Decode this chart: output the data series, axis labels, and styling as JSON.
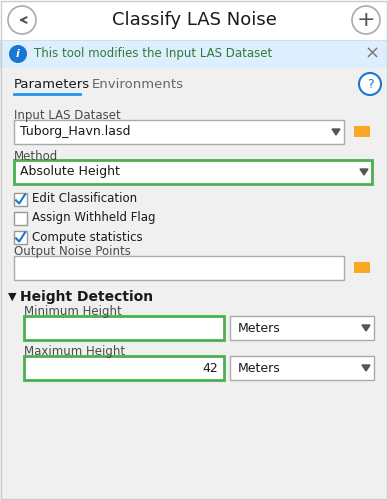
{
  "title": "Classify LAS Noise",
  "info_text": "This tool modifies the Input LAS Dataset",
  "tab1": "Parameters",
  "tab2": "Environments",
  "label_input_las": "Input LAS Dataset",
  "input_las_value": "Tuborg_Havn.lasd",
  "label_method": "Method",
  "method_value": "Absolute Height",
  "cb1_label": "Edit Classification",
  "cb1_checked": true,
  "cb2_label": "Assign Withheld Flag",
  "cb2_checked": false,
  "cb3_label": "Compute statistics",
  "cb3_checked": true,
  "label_output_noise": "Output Noise Points",
  "output_noise_value": "",
  "section_height_detection": "Height Detection",
  "label_min_height": "Minimum Height",
  "min_height_value": "",
  "label_max_height": "Maximum Height",
  "max_height_value": "42",
  "meters_label": "Meters",
  "bg_color": "#f0f0f0",
  "header_bg": "#ffffff",
  "info_bg": "#ddeeff",
  "info_text_color": "#2e7d32",
  "title_color": "#1a1a1a",
  "label_color": "#4a4a4a",
  "section_color": "#1a1a1a",
  "green_border": "#4caf50",
  "box_bg": "#ffffff",
  "tab_underline": "#2196f3",
  "icon_blue": "#1976d2",
  "folder_color": "#f9a825",
  "help_border": "#1976d2",
  "help_text_color": "#1976d2"
}
